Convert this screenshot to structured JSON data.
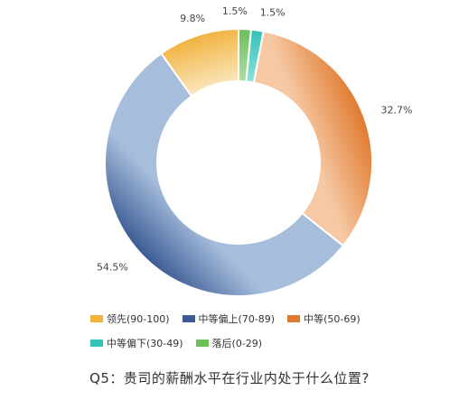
{
  "chart_data": {
    "type": "pie",
    "donut": true,
    "title": "Q5：贵司的薪酬水平在行业内处于什么位置?",
    "legend_position": "bottom",
    "slices": [
      {
        "name": "领先(90-100)",
        "value": 9.8,
        "label": "9.8%",
        "color": "#f2b23e",
        "gradient_to": "#fbeccb"
      },
      {
        "name": "中等偏上(70-89)",
        "value": 54.5,
        "label": "54.5%",
        "color": "#3b5a93",
        "gradient_to": "#a6bddc"
      },
      {
        "name": "中等(50-69)",
        "value": 32.7,
        "label": "32.7%",
        "color": "#e07a2e",
        "gradient_to": "#f6c9a4"
      },
      {
        "name": "中等偏下(30-49)",
        "value": 1.5,
        "label": "1.5%",
        "color": "#33c3b8",
        "gradient_to": "#9ee6de"
      },
      {
        "name": "落后(0-29)",
        "value": 1.5,
        "label": "1.5%",
        "color": "#6cc05b",
        "gradient_to": "#b8e3ad"
      }
    ],
    "draw_order": [
      "落后(0-29)",
      "中等偏下(30-49)",
      "中等(50-69)",
      "中等偏上(70-89)",
      "领先(90-100)"
    ]
  }
}
